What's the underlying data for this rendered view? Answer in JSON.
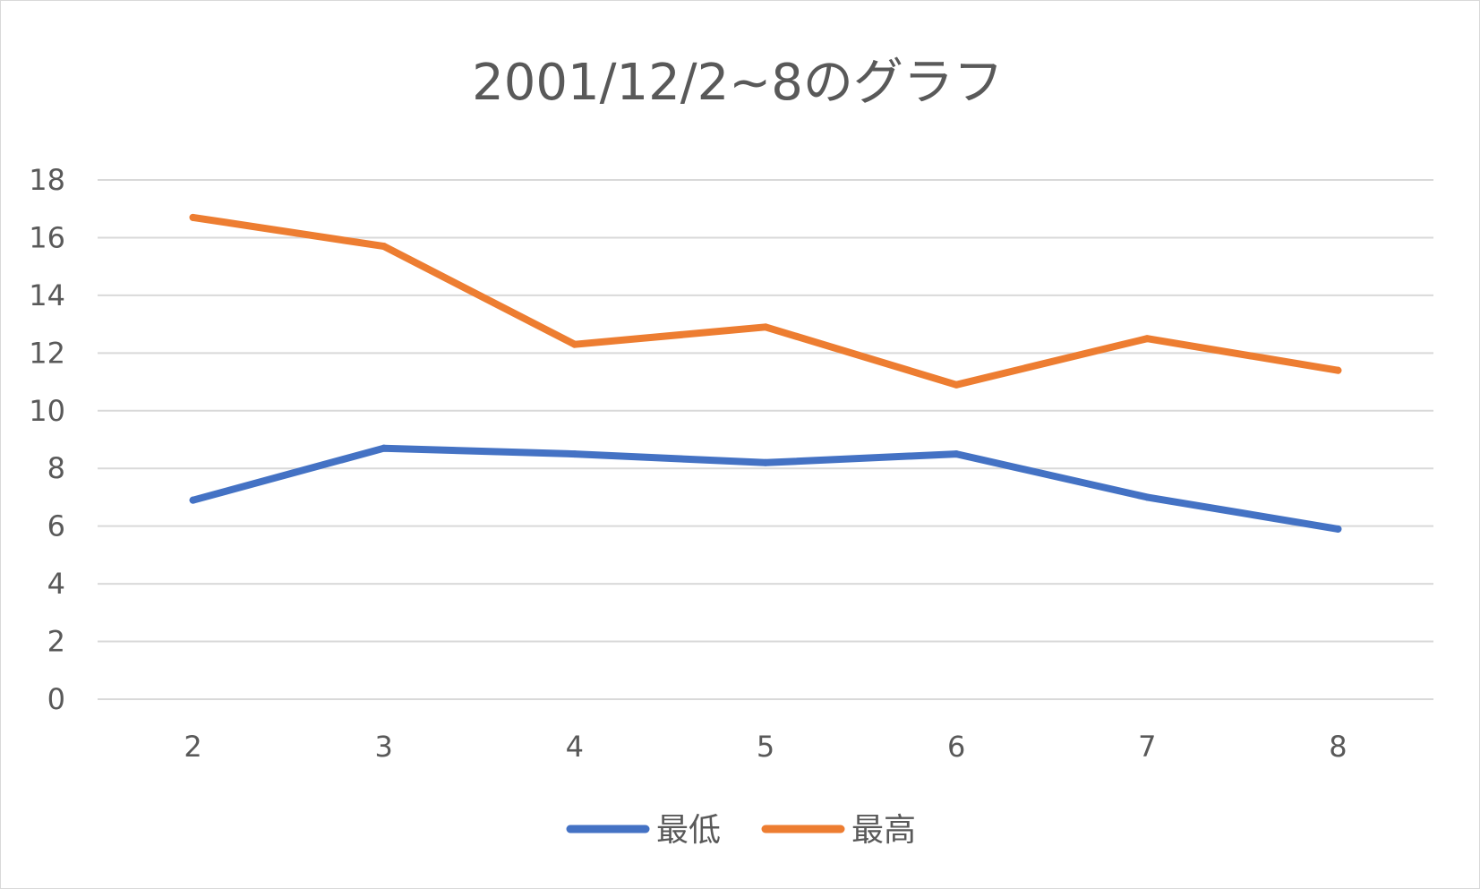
{
  "chart_data": {
    "type": "line",
    "title": "2001/12/2~8のグラフ",
    "xlabel": "",
    "ylabel": "",
    "categories": [
      "2",
      "3",
      "4",
      "5",
      "6",
      "7",
      "8"
    ],
    "ylim": [
      0,
      18
    ],
    "yticks": [
      "0",
      "2",
      "4",
      "6",
      "8",
      "10",
      "12",
      "14",
      "16",
      "18"
    ],
    "grid": true,
    "legend_position": "bottom",
    "series": [
      {
        "name": "最低",
        "color": "#4472C4",
        "values": [
          6.9,
          8.7,
          8.5,
          8.2,
          8.5,
          7.0,
          5.9
        ]
      },
      {
        "name": "最高",
        "color": "#ED7D31",
        "values": [
          16.7,
          15.7,
          12.3,
          12.9,
          10.9,
          12.5,
          11.4
        ]
      }
    ]
  }
}
